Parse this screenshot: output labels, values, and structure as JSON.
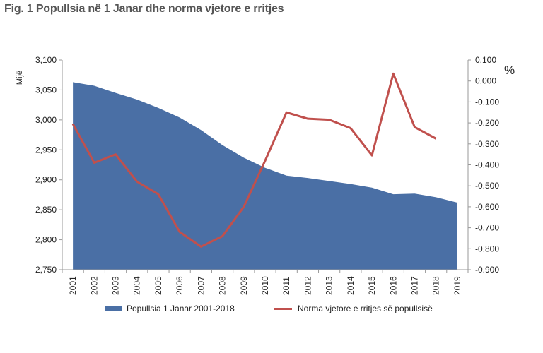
{
  "title": "Fig. 1 Popullsia në 1 Janar dhe norma vjetore e rritjes",
  "chart_data": {
    "type": "area+line",
    "x": [
      2001,
      2002,
      2003,
      2004,
      2005,
      2006,
      2007,
      2008,
      2009,
      2010,
      2011,
      2012,
      2013,
      2014,
      2015,
      2016,
      2017,
      2018,
      2019
    ],
    "y_left_unit": "Mijë",
    "y_right_unit": "%",
    "y_left_range": [
      2750,
      3100
    ],
    "y_right_range": [
      -0.9,
      0.1
    ],
    "y_left_ticks": [
      "3,100",
      "3,050",
      "3,000",
      "2,950",
      "2,900",
      "2,850",
      "2,800",
      "2,750"
    ],
    "y_right_ticks": [
      "0.100",
      "0.000",
      "-0.100",
      "-0.200",
      "-0.300",
      "-0.400",
      "-0.500",
      "-0.600",
      "-0.700",
      "-0.800",
      "-0.900"
    ],
    "series": [
      {
        "name": "Popullsia 1 Janar 2001-2018",
        "type": "area",
        "axis": "left",
        "color": "#4a6fa5",
        "values": [
          3063,
          3057,
          3045,
          3034,
          3020,
          3004,
          2983,
          2958,
          2937,
          2920,
          2907,
          2903,
          2898,
          2893,
          2887,
          2876,
          2877,
          2871,
          2862
        ]
      },
      {
        "name": "Norma vjetore e rritjes së popullsisë",
        "type": "line",
        "axis": "right",
        "color": "#c0504d",
        "values": [
          -0.205,
          -0.39,
          -0.35,
          -0.48,
          -0.54,
          -0.72,
          -0.79,
          -0.74,
          -0.6,
          -0.38,
          -0.15,
          -0.18,
          -0.185,
          -0.225,
          -0.355,
          0.035,
          -0.22,
          -0.275,
          null
        ]
      }
    ]
  }
}
